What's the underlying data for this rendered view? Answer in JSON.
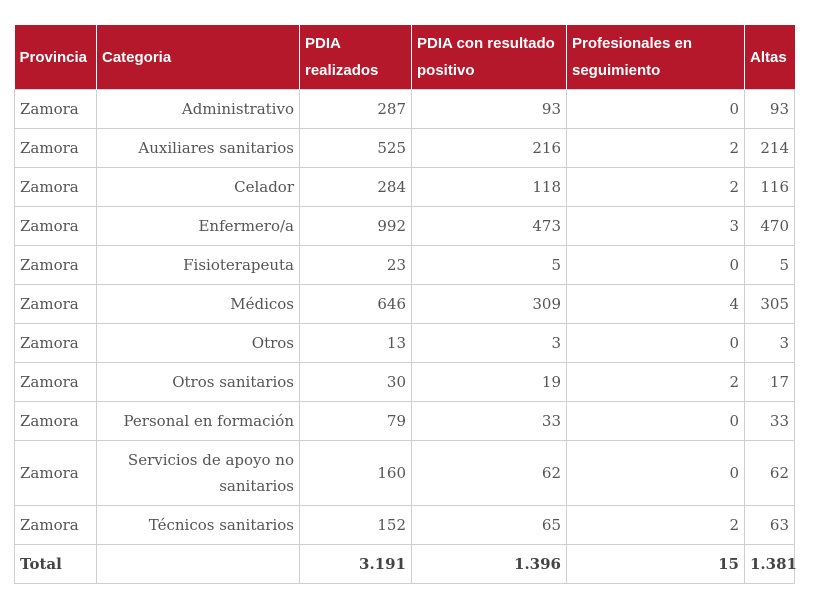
{
  "table": {
    "headers": [
      "Provincia",
      "Categoria",
      "PDIA realizados",
      "PDIA con resultado positivo",
      "Profesionales en seguimiento",
      "Altas"
    ],
    "rows": [
      [
        "Zamora",
        "Administrativo",
        "287",
        "93",
        "0",
        "93"
      ],
      [
        "Zamora",
        "Auxiliares sanitarios",
        "525",
        "216",
        "2",
        "214"
      ],
      [
        "Zamora",
        "Celador",
        "284",
        "118",
        "2",
        "116"
      ],
      [
        "Zamora",
        "Enfermero/a",
        "992",
        "473",
        "3",
        "470"
      ],
      [
        "Zamora",
        "Fisioterapeuta",
        "23",
        "5",
        "0",
        "5"
      ],
      [
        "Zamora",
        "Médicos",
        "646",
        "309",
        "4",
        "305"
      ],
      [
        "Zamora",
        "Otros",
        "13",
        "3",
        "0",
        "3"
      ],
      [
        "Zamora",
        "Otros sanitarios",
        "30",
        "19",
        "2",
        "17"
      ],
      [
        "Zamora",
        "Personal en formación",
        "79",
        "33",
        "0",
        "33"
      ],
      [
        "Zamora",
        "Servicios de apoyo no sanitarios",
        "160",
        "62",
        "0",
        "62"
      ],
      [
        "Zamora",
        "Técnicos sanitarios",
        "152",
        "65",
        "2",
        "63"
      ]
    ],
    "total": [
      "Total",
      "",
      "3.191",
      "1.396",
      "15",
      "1.381"
    ]
  },
  "colors": {
    "header_bg": "#b5182b",
    "header_text": "#ffffff",
    "border": "#cfcfcf"
  }
}
